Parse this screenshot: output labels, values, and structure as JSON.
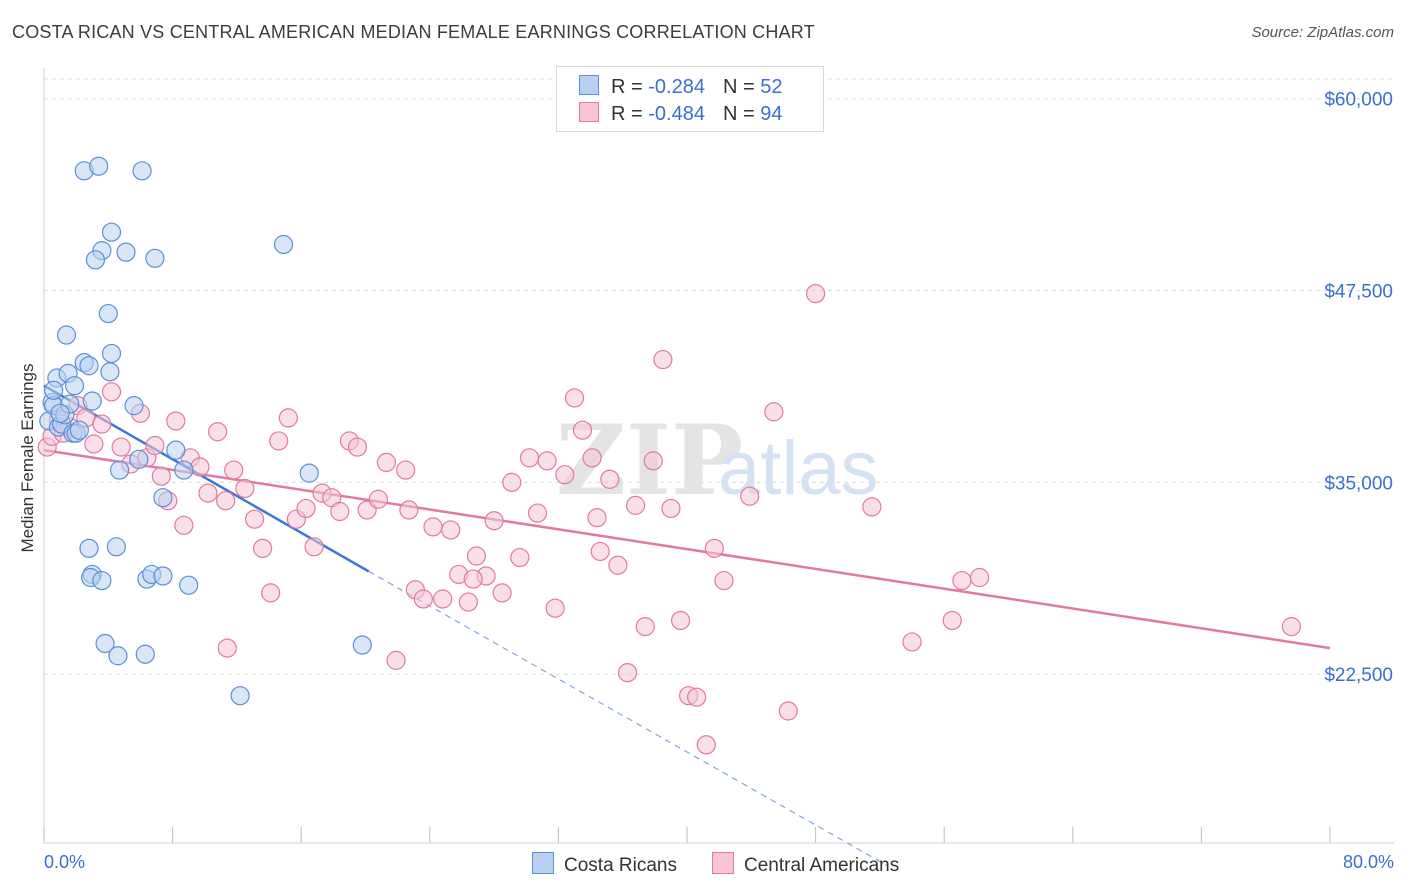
{
  "title": "COSTA RICAN VS CENTRAL AMERICAN MEDIAN FEMALE EARNINGS CORRELATION CHART",
  "source": "Source: ZipAtlas.com",
  "watermark": {
    "zip": "ZIP",
    "atlas": "atlas"
  },
  "legend": {
    "rows": [
      {
        "r_label": "R = ",
        "r_value": "-0.284",
        "n_label": "N = ",
        "n_value": "52"
      },
      {
        "r_label": "R = ",
        "r_value": "-0.484",
        "n_label": "N = ",
        "n_value": "94"
      }
    ]
  },
  "chart_data": {
    "type": "scatter",
    "title": "COSTA RICAN VS CENTRAL AMERICAN MEDIAN FEMALE EARNINGS CORRELATION CHART",
    "xlabel": "",
    "ylabel": "Median Female Earnings",
    "xlim": [
      0,
      80
    ],
    "ylim": [
      11500,
      62000
    ],
    "x_tick_labels": [
      "0.0%",
      "80.0%"
    ],
    "y_ticks": [
      {
        "value": 22500,
        "label": "$22,500"
      },
      {
        "value": 35000,
        "label": "$35,000"
      },
      {
        "value": 47500,
        "label": "$47,500"
      },
      {
        "value": 60000,
        "label": "$60,000"
      }
    ],
    "grid": true,
    "legend_position": "top-center",
    "series": [
      {
        "name": "Costa Ricans",
        "color": "#5b8fd6",
        "fill": "#b8d1f2",
        "points": [
          [
            0.3,
            39000
          ],
          [
            0.5,
            40200
          ],
          [
            0.6,
            40000
          ],
          [
            0.8,
            41800
          ],
          [
            0.9,
            38600
          ],
          [
            1.1,
            38800
          ],
          [
            1.3,
            39400
          ],
          [
            1.5,
            42100
          ],
          [
            1.6,
            40100
          ],
          [
            1.8,
            38200
          ],
          [
            1.4,
            44600
          ],
          [
            2.0,
            38200
          ],
          [
            1.9,
            41300
          ],
          [
            2.2,
            38400
          ],
          [
            2.5,
            42800
          ],
          [
            2.8,
            42600
          ],
          [
            2.5,
            55300
          ],
          [
            3.4,
            55600
          ],
          [
            6.1,
            55300
          ],
          [
            4.2,
            51300
          ],
          [
            3.6,
            50100
          ],
          [
            3.2,
            49500
          ],
          [
            5.1,
            50000
          ],
          [
            6.9,
            49600
          ],
          [
            4.0,
            46000
          ],
          [
            4.2,
            43400
          ],
          [
            4.1,
            42200
          ],
          [
            3.0,
            40300
          ],
          [
            2.8,
            30700
          ],
          [
            3.0,
            29000
          ],
          [
            2.9,
            28800
          ],
          [
            3.6,
            28600
          ],
          [
            4.5,
            30800
          ],
          [
            5.6,
            40000
          ],
          [
            5.9,
            36500
          ],
          [
            4.7,
            35800
          ],
          [
            6.4,
            28700
          ],
          [
            6.7,
            29000
          ],
          [
            7.4,
            28900
          ],
          [
            7.4,
            34000
          ],
          [
            8.2,
            37100
          ],
          [
            9.0,
            28300
          ],
          [
            8.7,
            35800
          ],
          [
            3.8,
            24500
          ],
          [
            4.6,
            23700
          ],
          [
            6.3,
            23800
          ],
          [
            12.2,
            21100
          ],
          [
            14.9,
            50500
          ],
          [
            16.5,
            35600
          ],
          [
            19.8,
            24400
          ],
          [
            0.6,
            41000
          ],
          [
            1.0,
            39500
          ]
        ],
        "trend": {
          "x": [
            0,
            20.2
          ],
          "y": [
            41300,
            29200
          ]
        },
        "trend_extension": {
          "x": [
            20.2,
            52.5
          ],
          "y": [
            29200,
            10000
          ]
        }
      },
      {
        "name": "Central Americans",
        "color": "#e07aa0",
        "fill": "#f6c4d6",
        "points": [
          [
            0.2,
            37300
          ],
          [
            0.5,
            38000
          ],
          [
            0.9,
            39100
          ],
          [
            1.2,
            38200
          ],
          [
            1.6,
            38600
          ],
          [
            2.1,
            40000
          ],
          [
            2.6,
            39200
          ],
          [
            3.1,
            37500
          ],
          [
            3.6,
            38800
          ],
          [
            4.2,
            40900
          ],
          [
            4.8,
            37300
          ],
          [
            5.4,
            36200
          ],
          [
            6.0,
            39500
          ],
          [
            6.4,
            36600
          ],
          [
            6.9,
            37400
          ],
          [
            7.3,
            35400
          ],
          [
            7.7,
            33800
          ],
          [
            8.2,
            39000
          ],
          [
            8.7,
            32200
          ],
          [
            9.1,
            36600
          ],
          [
            9.7,
            36000
          ],
          [
            10.2,
            34300
          ],
          [
            10.8,
            38300
          ],
          [
            11.3,
            33800
          ],
          [
            11.8,
            35800
          ],
          [
            12.5,
            34600
          ],
          [
            13.1,
            32600
          ],
          [
            13.6,
            30700
          ],
          [
            14.1,
            27800
          ],
          [
            14.6,
            37700
          ],
          [
            15.2,
            39200
          ],
          [
            15.7,
            32600
          ],
          [
            16.3,
            33300
          ],
          [
            16.8,
            30800
          ],
          [
            17.3,
            34300
          ],
          [
            17.9,
            34000
          ],
          [
            18.4,
            33100
          ],
          [
            19.0,
            37700
          ],
          [
            19.5,
            37300
          ],
          [
            20.1,
            33200
          ],
          [
            20.8,
            33900
          ],
          [
            21.3,
            36300
          ],
          [
            21.9,
            23400
          ],
          [
            22.5,
            35800
          ],
          [
            23.1,
            28000
          ],
          [
            23.6,
            27400
          ],
          [
            24.2,
            32100
          ],
          [
            24.8,
            27400
          ],
          [
            25.3,
            31900
          ],
          [
            25.8,
            29000
          ],
          [
            26.4,
            27200
          ],
          [
            26.9,
            30200
          ],
          [
            27.5,
            28900
          ],
          [
            28.0,
            32500
          ],
          [
            28.5,
            27800
          ],
          [
            29.1,
            35000
          ],
          [
            29.6,
            30100
          ],
          [
            30.2,
            36600
          ],
          [
            30.7,
            33000
          ],
          [
            31.3,
            36400
          ],
          [
            31.8,
            26800
          ],
          [
            32.4,
            35500
          ],
          [
            33.0,
            40500
          ],
          [
            33.5,
            38400
          ],
          [
            34.1,
            36600
          ],
          [
            34.6,
            30500
          ],
          [
            35.2,
            35200
          ],
          [
            35.7,
            29600
          ],
          [
            36.3,
            22600
          ],
          [
            36.8,
            33500
          ],
          [
            37.4,
            25600
          ],
          [
            37.9,
            36400
          ],
          [
            38.5,
            43000
          ],
          [
            39.0,
            33300
          ],
          [
            39.6,
            26000
          ],
          [
            40.1,
            21100
          ],
          [
            40.6,
            21000
          ],
          [
            41.2,
            17900
          ],
          [
            41.7,
            30700
          ],
          [
            42.3,
            28600
          ],
          [
            43.9,
            34100
          ],
          [
            45.4,
            39600
          ],
          [
            46.3,
            20100
          ],
          [
            48.0,
            47300
          ],
          [
            51.5,
            33400
          ],
          [
            54.0,
            24600
          ],
          [
            56.5,
            26000
          ],
          [
            57.1,
            28600
          ],
          [
            58.2,
            28800
          ],
          [
            77.6,
            25600
          ],
          [
            22.7,
            33200
          ],
          [
            26.7,
            28700
          ],
          [
            34.4,
            32700
          ],
          [
            11.4,
            24200
          ]
        ],
        "trend": {
          "x": [
            0,
            80
          ],
          "y": [
            37100,
            24200
          ]
        }
      }
    ]
  }
}
